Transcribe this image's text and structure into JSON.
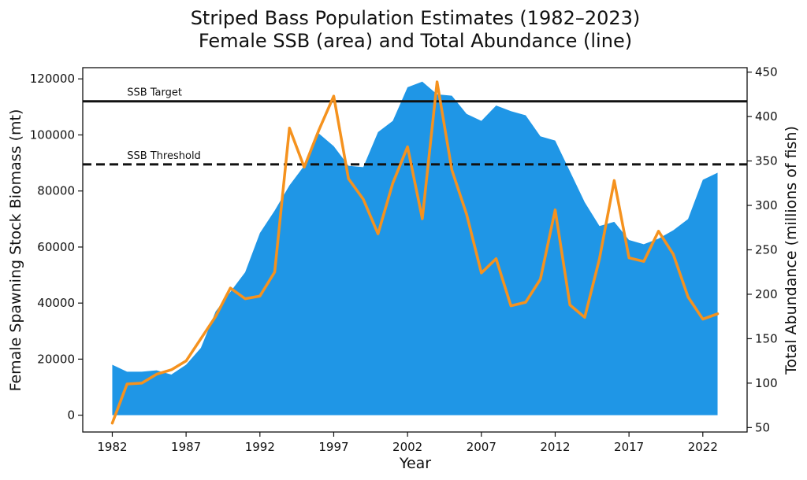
{
  "chart_data": {
    "type": "area",
    "title": "Striped Bass Population Estimates (1982–2023)",
    "subtitle": "Female SSB (area) and Total Abundance (line)",
    "xlabel": "Year",
    "ylabel_left": "Female Spawning Stock Biomass (mt)",
    "ylabel_right": "Total Abundance (millions of fish)",
    "xlim": [
      1980,
      2025
    ],
    "ylim_left": [
      -6000,
      124000
    ],
    "ylim_right": [
      45,
      455
    ],
    "x_ticks": [
      1982,
      1987,
      1992,
      1997,
      2002,
      2007,
      2012,
      2017,
      2022
    ],
    "y_ticks_left": [
      0,
      20000,
      40000,
      60000,
      80000,
      100000,
      120000
    ],
    "y_ticks_right": [
      50,
      100,
      150,
      200,
      250,
      300,
      350,
      400,
      450
    ],
    "grid": false,
    "x": [
      1982,
      1983,
      1984,
      1985,
      1986,
      1987,
      1988,
      1989,
      1990,
      1991,
      1992,
      1993,
      1994,
      1995,
      1996,
      1997,
      1998,
      1999,
      2000,
      2001,
      2002,
      2003,
      2004,
      2005,
      2006,
      2007,
      2008,
      2009,
      2010,
      2011,
      2012,
      2013,
      2014,
      2015,
      2016,
      2017,
      2018,
      2019,
      2020,
      2021,
      2022,
      2023
    ],
    "series": [
      {
        "name": "Female SSB",
        "axis": "left",
        "kind": "area",
        "color": "#1f96e6",
        "values": [
          18000,
          15500,
          15500,
          16000,
          14500,
          18000,
          24000,
          37000,
          44000,
          51000,
          65000,
          73000,
          82000,
          89000,
          100500,
          96000,
          89000,
          88500,
          101000,
          105000,
          117000,
          119000,
          114500,
          114000,
          107500,
          105000,
          110500,
          108500,
          107000,
          99500,
          98000,
          87000,
          76000,
          67500,
          69000,
          62500,
          61000,
          63000,
          66000,
          70000,
          84000,
          86500
        ]
      },
      {
        "name": "Total Abundance",
        "axis": "right",
        "kind": "line",
        "color": "#f5921e",
        "values": [
          55,
          99,
          100,
          110,
          115,
          125,
          150,
          175,
          207,
          195,
          198,
          225,
          387,
          343,
          385,
          423,
          330,
          307,
          268,
          325,
          366,
          285,
          439,
          340,
          290,
          224,
          240,
          187,
          191,
          217,
          295,
          188,
          174,
          240,
          328,
          241,
          237,
          271,
          245,
          197,
          172,
          178
        ]
      }
    ],
    "reference_lines": [
      {
        "label": "SSB Target",
        "value": 112000,
        "axis": "left",
        "style": "solid",
        "color": "#111111"
      },
      {
        "label": "SSB Threshold",
        "value": 89500,
        "axis": "left",
        "style": "dashed",
        "color": "#111111"
      }
    ]
  }
}
